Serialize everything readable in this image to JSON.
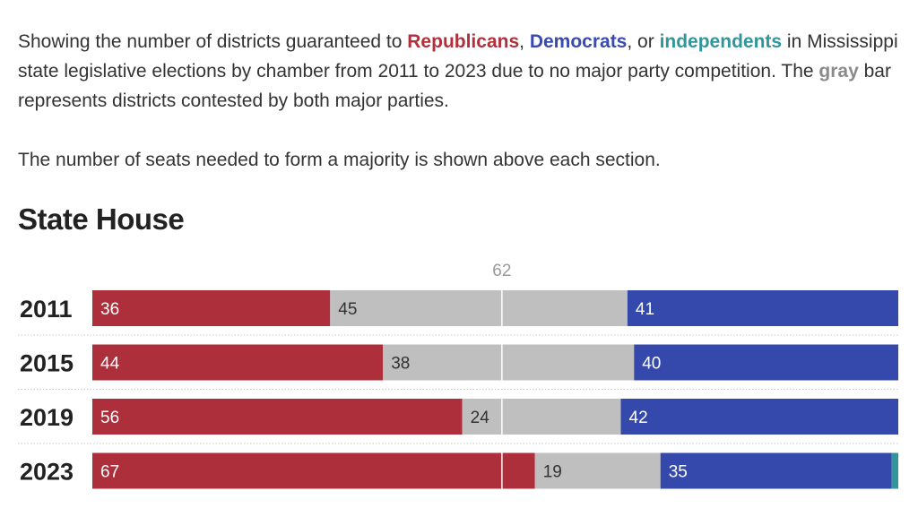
{
  "intro": {
    "t1": "Showing the number of districts guaranteed to ",
    "republicans": "Republicans",
    "comma1": ", ",
    "democrats": "Democrats",
    "comma2": ", or ",
    "independents": "independents",
    "t2": " in Mississippi state legislative elections by chamber from 2011 to 2023 due to no major party competition. The ",
    "gray": "gray",
    "t3": " bar represents districts contested by both major parties.",
    "majority_note": "The number of seats needed to form a majority is shown above each section."
  },
  "section_title": "State House",
  "colors": {
    "republican": "#ad2f3b",
    "contested": "#bfbfbf",
    "democrat": "#3549ad",
    "independent": "#31969a",
    "majority_line": "#ffffff",
    "majority_label": "#999999"
  },
  "chart_data": {
    "type": "bar",
    "orientation": "horizontal",
    "stacked": true,
    "title": "State House",
    "total_seats": 122,
    "majority": 62,
    "majority_label": "62",
    "categories": [
      "2011",
      "2015",
      "2019",
      "2023"
    ],
    "series": [
      {
        "key": "rep",
        "name": "Republicans",
        "values": [
          36,
          44,
          56,
          67
        ]
      },
      {
        "key": "cont",
        "name": "gray",
        "values": [
          45,
          38,
          24,
          19
        ]
      },
      {
        "key": "dem",
        "name": "Democrats",
        "values": [
          41,
          40,
          42,
          35
        ]
      },
      {
        "key": "ind",
        "name": "independents",
        "values": [
          0,
          0,
          0,
          1
        ]
      }
    ]
  }
}
